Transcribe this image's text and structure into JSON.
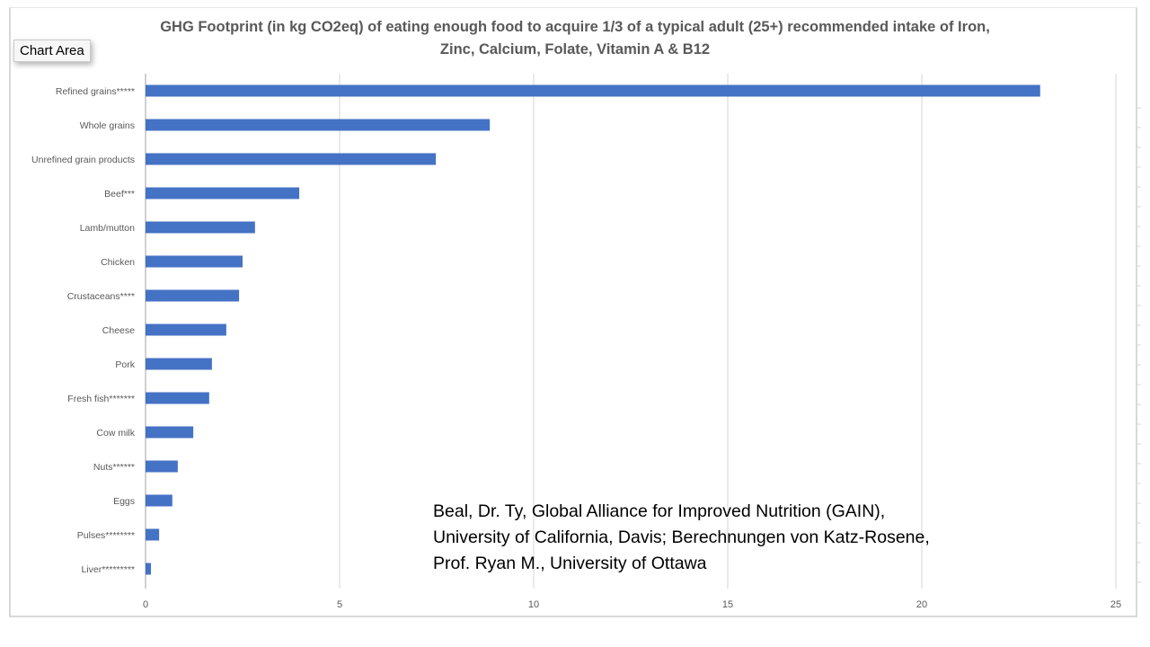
{
  "chart_data": {
    "type": "bar",
    "orientation": "horizontal",
    "title": "GHG Footprint (in kg CO2eq) of eating enough food to acquire 1/3 of a typical adult (25+) recommended intake of Iron, Zinc, Calcium, Folate, Vitamin A & B12",
    "title_lines": [
      "GHG Footprint (in kg CO2eq) of eating enough food to acquire 1/3 of a typical adult (25+) recommended intake of Iron,",
      "Zinc, Calcium, Folate, Vitamin A & B12"
    ],
    "categories": [
      "Refined grains*****",
      "Whole grains",
      "Unrefined grain products",
      "Beef***",
      "Lamb/mutton",
      "Chicken",
      "Crustaceans****",
      "Cheese",
      "Pork",
      "Fresh fish*******",
      "Cow milk",
      "Nuts******",
      "Eggs",
      "Pulses********",
      "Liver*********"
    ],
    "values": [
      23.05,
      8.87,
      7.48,
      3.96,
      2.82,
      2.5,
      2.41,
      2.08,
      1.71,
      1.64,
      1.23,
      0.83,
      0.69,
      0.35,
      0.14
    ],
    "xlim": [
      0,
      25
    ],
    "xticks": [
      "0",
      "5",
      "10",
      "15",
      "20",
      "25"
    ],
    "xlabel": "",
    "ylabel": "",
    "grid": "vertical",
    "bar_color": "#4472c4",
    "legend": "none"
  },
  "ui": {
    "chart_area_tooltip": "Chart Area"
  },
  "source_lines": [
    "Beal, Dr. Ty, Global Alliance for Improved Nutrition (GAIN),",
    "University of California, Davis; Berechnungen von Katz-Rosene,",
    "Prof. Ryan M., University of Ottawa"
  ]
}
